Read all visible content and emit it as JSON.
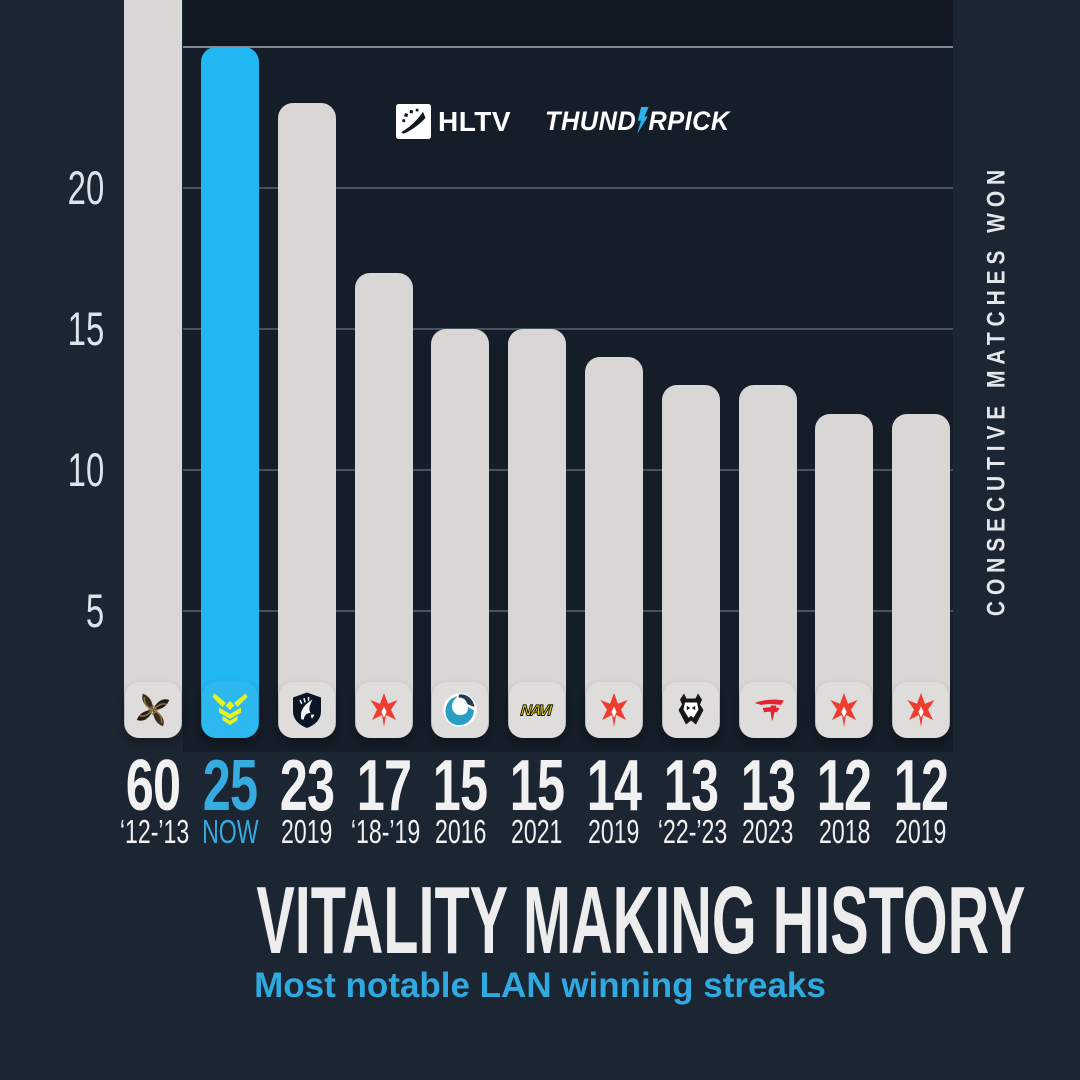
{
  "sponsors": {
    "hltv_label": "HLTV",
    "hltv_icon": "hltv-logo-icon",
    "thunderpick_pre": "THUND",
    "thunderpick_post": "RPICK",
    "thunderpick_bolt_icon": "lightning-bolt-icon"
  },
  "chart_data": {
    "type": "bar",
    "title": "VITALITY MAKING HISTORY",
    "subtitle": "Most notable LAN winning streaks",
    "ylabel": "CONSECUTIVE MATCHES WON",
    "ylim": [
      0,
      26.7
    ],
    "gridline_values": [
      5,
      10,
      15,
      20,
      25
    ],
    "ytick_labels": [
      "5",
      "10",
      "15",
      "20"
    ],
    "legend_position": "none",
    "grid": true,
    "categories": [
      "Ninjas in Pyjamas",
      "Vitality",
      "Team Liquid",
      "Astralis",
      "Luminosity Gaming",
      "NAVI",
      "Astralis",
      "G2 Esports",
      "FaZe Clan",
      "Astralis",
      "Astralis"
    ],
    "values": [
      60,
      25,
      23,
      17,
      15,
      15,
      14,
      13,
      13,
      12,
      12
    ],
    "bars": [
      {
        "team": "Ninjas in Pyjamas",
        "slug": "nip",
        "logo": "nip-logo",
        "value": 60,
        "display_value": "60",
        "period": "‘12-’13",
        "highlight": false
      },
      {
        "team": "Vitality",
        "slug": "vitality",
        "logo": "vitality-logo",
        "value": 25,
        "display_value": "25",
        "period": "NOW",
        "highlight": true
      },
      {
        "team": "Team Liquid",
        "slug": "liquid",
        "logo": "team-liquid-logo",
        "value": 23,
        "display_value": "23",
        "period": "2019",
        "highlight": false
      },
      {
        "team": "Astralis",
        "slug": "astralis-1819",
        "logo": "astralis-logo",
        "value": 17,
        "display_value": "17",
        "period": "‘18-’19",
        "highlight": false
      },
      {
        "team": "Luminosity Gaming",
        "slug": "luminosity",
        "logo": "luminosity-logo",
        "value": 15,
        "display_value": "15",
        "period": "2016",
        "highlight": false
      },
      {
        "team": "NAVI",
        "slug": "navi",
        "logo": "navi-logo",
        "value": 15,
        "display_value": "15",
        "period": "2021",
        "highlight": false
      },
      {
        "team": "Astralis",
        "slug": "astralis-2019a",
        "logo": "astralis-logo",
        "value": 14,
        "display_value": "14",
        "period": "2019",
        "highlight": false
      },
      {
        "team": "G2 Esports",
        "slug": "g2",
        "logo": "g2-logo",
        "value": 13,
        "display_value": "13",
        "period": "‘22-’23",
        "highlight": false
      },
      {
        "team": "FaZe Clan",
        "slug": "faze",
        "logo": "faze-logo",
        "value": 13,
        "display_value": "13",
        "period": "2023",
        "highlight": false
      },
      {
        "team": "Astralis",
        "slug": "astralis-2018",
        "logo": "astralis-logo",
        "value": 12,
        "display_value": "12",
        "period": "2018",
        "highlight": false
      },
      {
        "team": "Astralis",
        "slug": "astralis-2019b",
        "logo": "astralis-logo",
        "value": 12,
        "display_value": "12",
        "period": "2019",
        "highlight": false
      }
    ],
    "colors": {
      "background": "#1c2532",
      "panel_background": "#141d28",
      "bar": "#d8d7d5",
      "bar_highlight": "#21b7f2",
      "chip": "#dedddb",
      "chip_highlight": "#2db8f0",
      "value_text": "#f1f1f1",
      "highlight_text": "#35abdf",
      "subtitle_text": "#2fa9e0",
      "gridline": "#47515f",
      "gridline_top": "#808a96"
    }
  }
}
